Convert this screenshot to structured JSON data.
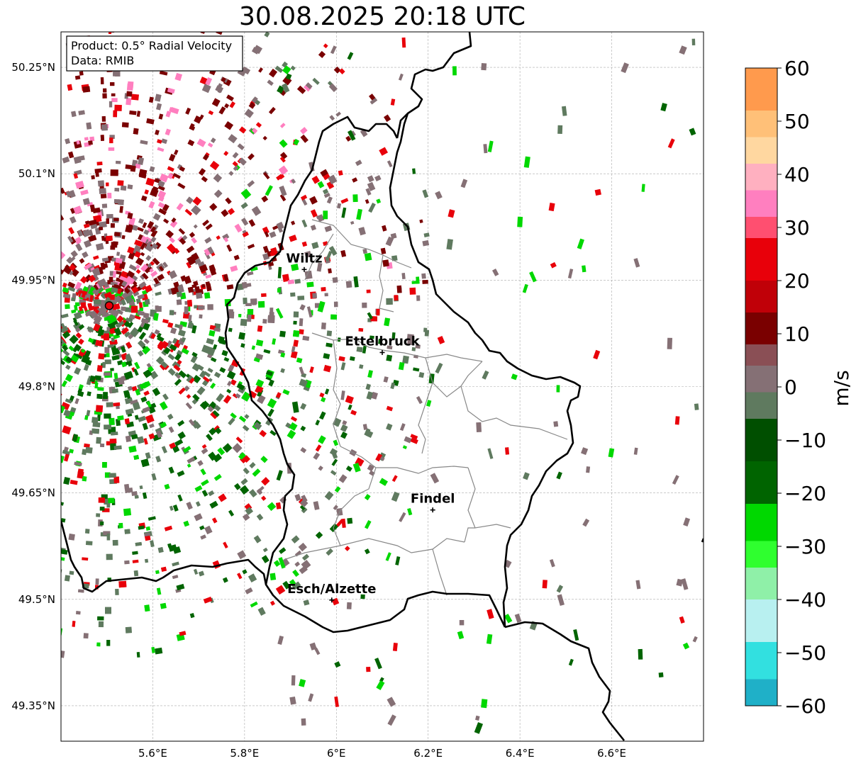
{
  "title": "30.08.2025 20:18 UTC",
  "info_box": {
    "product": "Product: 0.5° Radial Velocity",
    "data": "Data: RMIB"
  },
  "x_ticks": [
    "5.6°E",
    "5.8°E",
    "6°E",
    "6.2°E",
    "6.4°E",
    "6.6°E"
  ],
  "y_ticks": [
    "50.25°N",
    "50.1°N",
    "49.95°N",
    "49.8°N",
    "49.65°N",
    "49.5°N",
    "49.35°N"
  ],
  "extent": {
    "lon": [
      5.4,
      6.8
    ],
    "lat": [
      49.3,
      50.3
    ]
  },
  "radar_site": {
    "lon": 5.505,
    "lat": 49.914
  },
  "cities": [
    {
      "name": "Wiltz",
      "lon": 5.93,
      "lat": 49.965
    },
    {
      "name": "Ettelbruck",
      "lon": 6.1,
      "lat": 49.848
    },
    {
      "name": "Findel",
      "lon": 6.21,
      "lat": 49.626
    },
    {
      "name": "Esch/Alzette",
      "lon": 5.99,
      "lat": 49.499
    }
  ],
  "colorbar": {
    "label": "m/s",
    "range": [
      -60,
      60
    ],
    "ticks": [
      "60",
      "50",
      "40",
      "30",
      "20",
      "10",
      "0",
      "−10",
      "−20",
      "−30",
      "−40",
      "−50",
      "−60"
    ],
    "colors": {
      "outbound_dark": "#7a0000",
      "outbound_red": "#e8000a",
      "pink": "#ff7fbf",
      "peach": "#ffd7a0",
      "orange": "#ff9a4d",
      "neutral_brown": "#857075",
      "neutral_green": "#5f7a5f",
      "inbound_dark": "#006400",
      "inbound_green": "#00d800",
      "light_green": "#8ff0a8",
      "cyan": "#32e0e0",
      "blue": "#1f7fc0"
    }
  }
}
